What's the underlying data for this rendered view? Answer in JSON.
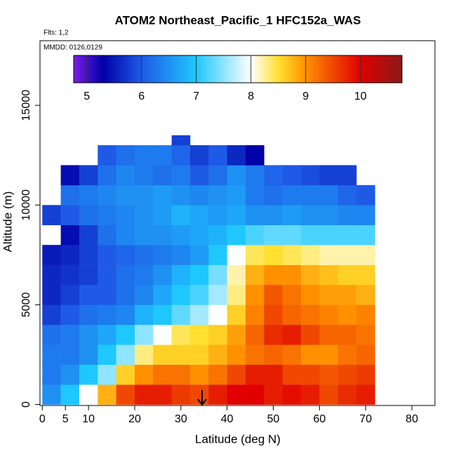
{
  "chart_data": {
    "type": "heatmap",
    "title": "ATOM2 Northeast_Pacific_1 HFC152a_WAS",
    "subtitle": "Flts: 1,2",
    "annotation": "MMDD: 0126,0129",
    "x_label": "Latitude (deg N)",
    "y_label": "Altitude (m)",
    "xlim": [
      -0.5,
      85
    ],
    "ylim": [
      -50,
      18240
    ],
    "xticks": [
      0,
      5,
      10,
      20,
      30,
      40,
      50,
      60,
      70,
      80
    ],
    "yticks": [
      0,
      5000,
      10000,
      15000
    ],
    "x_bins": [
      0,
      4,
      8,
      12,
      16,
      20,
      24,
      28,
      32,
      36,
      40,
      44,
      48,
      52,
      56,
      60,
      64,
      68,
      72
    ],
    "y_bins": [
      0,
      1000,
      2000,
      3000,
      4000,
      5000,
      6000,
      7000,
      8000,
      9000,
      10000,
      11000,
      12000,
      13000,
      13500
    ],
    "z": [
      [
        6.5,
        7,
        8,
        8.8,
        9.5,
        9.8,
        9.8,
        9.6,
        9.5,
        9.8,
        10,
        10,
        9.8,
        9.9,
        9.8,
        9.5,
        9.7,
        9.8
      ],
      [
        6.3,
        6.5,
        7,
        7.5,
        8.6,
        9,
        9.2,
        9.2,
        9,
        9.2,
        9.5,
        9.8,
        9.8,
        9.5,
        9.5,
        9.4,
        9.5,
        9.6
      ],
      [
        6.3,
        6.3,
        6.5,
        7,
        7.5,
        8.3,
        8.6,
        8.6,
        8.6,
        8.8,
        9,
        9.2,
        9.3,
        9.2,
        9,
        9,
        9.2,
        9.3
      ],
      [
        6.2,
        6.3,
        6.5,
        6.7,
        7,
        7.5,
        8,
        8.4,
        8.5,
        8.6,
        8.9,
        9.3,
        9.7,
        9.8,
        9.5,
        9.3,
        9.3,
        9.2
      ],
      [
        5.8,
        6,
        6.2,
        6.3,
        6.4,
        6.8,
        7,
        7.3,
        7.6,
        8,
        8.6,
        9.1,
        9.5,
        9.3,
        9.2,
        9.1,
        9,
        9.1
      ],
      [
        5.6,
        5.8,
        6,
        6,
        6.2,
        6.4,
        6.7,
        7,
        7.2,
        7.6,
        8.3,
        9,
        9.4,
        9.2,
        9,
        8.9,
        8.9,
        8.8
      ],
      [
        5.6,
        5.7,
        5.8,
        6,
        6.2,
        6.3,
        6.5,
        6.8,
        7,
        7.4,
        8.2,
        8.8,
        9,
        9,
        8.8,
        8.7,
        8.6,
        8.6
      ],
      [
        5.5,
        5.6,
        5.8,
        6,
        6.1,
        6.2,
        6.3,
        6.4,
        6.6,
        7,
        8,
        8.4,
        8.5,
        8.4,
        8.3,
        8.2,
        8.2,
        8.2
      ],
      [
        null,
        5.4,
        5.8,
        6.2,
        6.4,
        6.5,
        6.5,
        6.6,
        6.7,
        6.8,
        7,
        7.2,
        7.3,
        7.3,
        7.2,
        7.2,
        7.2,
        7.2
      ],
      [
        5.8,
        6,
        6.2,
        6.3,
        6.4,
        6.5,
        6.6,
        6.8,
        6.7,
        6.6,
        6.7,
        6.5,
        6.5,
        6.6,
        6.5,
        6.5,
        6.4,
        6.4
      ],
      [
        null,
        6.2,
        6.3,
        6.4,
        6.5,
        6.5,
        6.6,
        6.5,
        6.4,
        6.5,
        6.6,
        6.3,
        6.2,
        6.3,
        6.3,
        6.3,
        6.1,
        6
      ],
      [
        null,
        5.4,
        5.8,
        6.2,
        6.4,
        6.3,
        6.2,
        6.3,
        6,
        6.2,
        6.5,
        6.3,
        6.1,
        6,
        5.9,
        5.8,
        5.8,
        null
      ],
      [
        null,
        null,
        null,
        6,
        6.2,
        6.3,
        6.3,
        6.1,
        5.8,
        6,
        5.6,
        5.3,
        null,
        null,
        null,
        null,
        null,
        null
      ],
      [
        null,
        null,
        null,
        null,
        null,
        null,
        null,
        5.8,
        null,
        null,
        null,
        null,
        null,
        null,
        null,
        null,
        null,
        null
      ]
    ],
    "colorscale": {
      "values": [
        4.76,
        5.3,
        6,
        7,
        8,
        8.5,
        9,
        10,
        10.76
      ],
      "colors": [
        "#7a1ee6",
        "#0000a8",
        "#1e5ae6",
        "#1ec8ff",
        "#ffffff",
        "#ffe030",
        "#ff9000",
        "#e00000",
        "#8b1a1a"
      ]
    },
    "colorbar_lim": [
      4.76,
      10.76
    ],
    "colorbar_ticks": [
      5,
      6,
      7,
      8,
      9,
      10
    ]
  }
}
